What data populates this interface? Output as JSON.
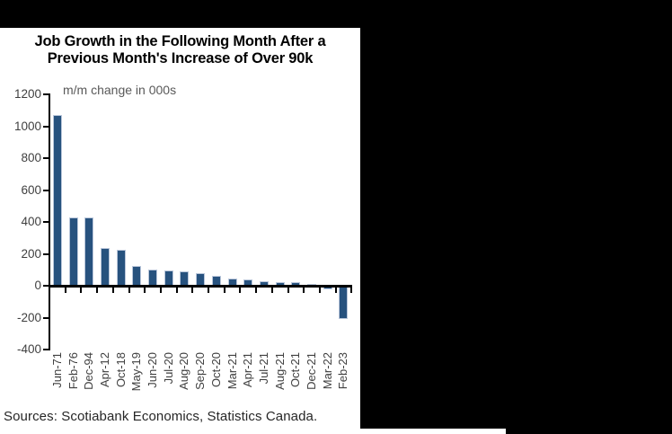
{
  "window": {
    "background_color": "#000000",
    "panel_color": "#FFFFFF"
  },
  "chart_data": {
    "type": "bar",
    "title_line1": "Job Growth in the Following Month After a",
    "title_line2": "Previous Month's Increase of Over 90k",
    "subtitle": "m/m change in 000s",
    "categories": [
      "Jun-71",
      "Feb-76",
      "Dec-94",
      "Apr-12",
      "Oct-18",
      "May-19",
      "Jun-20",
      "Jul-20",
      "Aug-20",
      "Sep-20",
      "Oct-20",
      "Mar-21",
      "Apr-21",
      "Jul-21",
      "Aug-21",
      "Oct-21",
      "Dec-21",
      "Mar-22",
      "Feb-23"
    ],
    "values": [
      1070,
      430,
      430,
      235,
      225,
      125,
      100,
      95,
      88,
      80,
      60,
      45,
      38,
      30,
      25,
      20,
      12,
      -25,
      -210
    ],
    "ylabel": "",
    "xlabel": "",
    "ylim": [
      -400,
      1200
    ],
    "yticks": [
      1200,
      1000,
      800,
      600,
      400,
      200,
      0,
      -200,
      -400
    ],
    "grid": false,
    "legend": "none",
    "bar_color": "#27527E",
    "axis_color": "#000000",
    "sources": "Sources: Scotiabank Economics, Statistics Canada."
  }
}
